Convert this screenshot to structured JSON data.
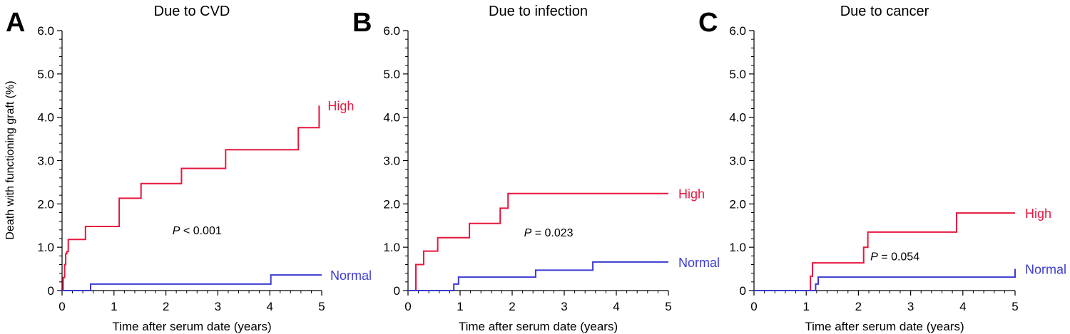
{
  "chart_data": [
    {
      "type": "line",
      "panel": "A",
      "title": "Due to CVD",
      "xlabel": "Time after serum date (years)",
      "ylabel": "Death with functioning graft (%)",
      "xlim": [
        0,
        5
      ],
      "ylim": [
        0,
        6
      ],
      "x_ticks": [
        "0",
        "1",
        "2",
        "3",
        "4",
        "5"
      ],
      "y_ticks": [
        "0",
        "1.0",
        "2.0",
        "3.0",
        "4.0",
        "5.0",
        "6.0"
      ],
      "annotation": {
        "italic": "P",
        "rest": " < 0.001"
      },
      "series": [
        {
          "name": "High",
          "color": "#e8173e",
          "x": [
            0,
            0.02,
            0.05,
            0.07,
            0.09,
            0.12,
            0.45,
            1.1,
            1.52,
            2.3,
            3.15,
            4.55,
            4.95
          ],
          "y": [
            0,
            0.3,
            0.6,
            0.85,
            0.9,
            1.18,
            1.48,
            2.13,
            2.47,
            2.82,
            3.25,
            3.76,
            4.27
          ]
        },
        {
          "name": "Normal",
          "color": "#3b3bd1",
          "x": [
            0,
            0.55,
            4.02,
            5
          ],
          "y": [
            0,
            0.15,
            0.36,
            0.36
          ]
        }
      ]
    },
    {
      "type": "line",
      "panel": "B",
      "title": "Due to infection",
      "xlabel": "Time after serum date (years)",
      "ylabel": "",
      "xlim": [
        0,
        5
      ],
      "ylim": [
        0,
        6
      ],
      "x_ticks": [
        "0",
        "1",
        "2",
        "3",
        "4",
        "5"
      ],
      "y_ticks": [
        "0",
        "1.0",
        "2.0",
        "3.0",
        "4.0",
        "5.0",
        "6.0"
      ],
      "annotation": {
        "italic": "P",
        "rest": " = 0.023"
      },
      "series": [
        {
          "name": "High",
          "color": "#e8173e",
          "x": [
            0,
            0.15,
            0.3,
            0.57,
            1.18,
            1.77,
            1.92,
            5
          ],
          "y": [
            0,
            0.6,
            0.91,
            1.22,
            1.55,
            1.9,
            2.24,
            2.24
          ]
        },
        {
          "name": "Normal",
          "color": "#3b3bd1",
          "x": [
            0,
            0.88,
            0.97,
            2.45,
            3.55,
            5
          ],
          "y": [
            0,
            0.15,
            0.31,
            0.47,
            0.66,
            0.66
          ]
        }
      ]
    },
    {
      "type": "line",
      "panel": "C",
      "title": "Due to cancer",
      "xlabel": "Time after serum date (years)",
      "ylabel": "",
      "xlim": [
        0,
        5
      ],
      "ylim": [
        0,
        6
      ],
      "x_ticks": [
        "0",
        "1",
        "2",
        "3",
        "4",
        "5"
      ],
      "y_ticks": [
        "0",
        "1.0",
        "2.0",
        "3.0",
        "4.0",
        "5.0",
        "6.0"
      ],
      "annotation": {
        "italic": "P",
        "rest": " = 0.054"
      },
      "series": [
        {
          "name": "High",
          "color": "#e8173e",
          "x": [
            0,
            1.08,
            1.12,
            2.1,
            2.18,
            3.88,
            5
          ],
          "y": [
            0,
            0.33,
            0.64,
            1.0,
            1.35,
            1.79,
            1.79
          ]
        },
        {
          "name": "Normal",
          "color": "#3b3bd1",
          "x": [
            0,
            1.18,
            1.23,
            5,
            5
          ],
          "y": [
            0,
            0.15,
            0.31,
            0.31,
            0.5
          ]
        }
      ]
    }
  ]
}
